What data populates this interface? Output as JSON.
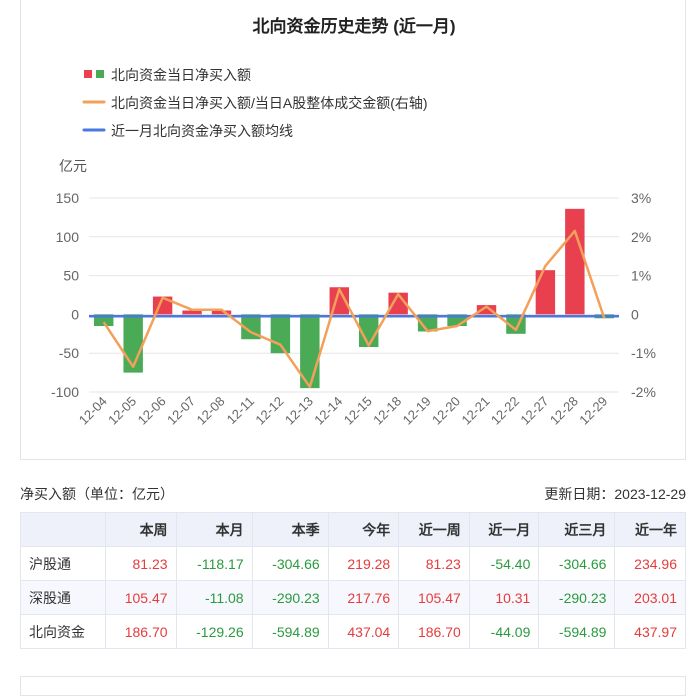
{
  "chart_data": {
    "type": "bar",
    "title": "北向资金历史走势 (近一月)",
    "legend": [
      {
        "label": "北向资金当日净买入额",
        "colors": [
          "#e8404f",
          "#4aaa56"
        ],
        "marker": "square-pair"
      },
      {
        "label": "北向资金当日净买入额/当日A股整体成交金额(右轴)",
        "colors": [
          "#f2a05a"
        ],
        "marker": "line"
      },
      {
        "label": "近一月北向资金净买入额均线",
        "colors": [
          "#4a77e0"
        ],
        "marker": "line"
      }
    ],
    "legend_position": "top-left",
    "ylabel": "亿元",
    "ylim": [
      -100,
      150
    ],
    "yticks": [
      150,
      100,
      50,
      0,
      -50,
      -100
    ],
    "y2lim": [
      -2,
      3
    ],
    "y2ticks": [
      "3%",
      "2%",
      "1%",
      "0",
      "-1%",
      "-2%"
    ],
    "y2values": [
      3,
      2,
      1,
      0,
      -1,
      -2
    ],
    "categories": [
      "12-04",
      "12-05",
      "12-06",
      "12-07",
      "12-08",
      "12-11",
      "12-12",
      "12-13",
      "12-14",
      "12-15",
      "12-18",
      "12-19",
      "12-20",
      "12-21",
      "12-22",
      "12-27",
      "12-28",
      "12-29"
    ],
    "series": [
      {
        "name": "北向资金当日净买入额",
        "type": "bar",
        "values": [
          -15,
          -75,
          23,
          5,
          5,
          -32,
          -50,
          -95,
          35,
          -42,
          28,
          -22,
          -15,
          12,
          -25,
          57,
          136,
          -5
        ]
      },
      {
        "name": "北向资金当日净买入额/当日A股整体成交金额(右轴)",
        "type": "line",
        "axis": "right",
        "values": [
          -0.2,
          -1.35,
          0.43,
          0.12,
          0.12,
          -0.46,
          -0.78,
          -1.87,
          0.65,
          -0.8,
          0.52,
          -0.43,
          -0.3,
          0.2,
          -0.4,
          1.25,
          2.15,
          -0.1
        ]
      },
      {
        "name": "近一月北向资金净买入额均线",
        "type": "line",
        "values": [
          -2.4,
          -2.4,
          -2.4,
          -2.4,
          -2.4,
          -2.4,
          -2.4,
          -2.4,
          -2.4,
          -2.4,
          -2.4,
          -2.4,
          -2.4,
          -2.4,
          -2.4,
          -2.4,
          -2.4,
          -2.4
        ]
      }
    ],
    "colors": {
      "positive": "#e8404f",
      "negative": "#4aaa56",
      "ratio": "#f2a05a",
      "average": "#4a77e0"
    }
  },
  "table_caption": "净买入额（单位：亿元）",
  "update_date": "更新日期：2023-12-29",
  "table": {
    "headers": [
      "",
      "本周",
      "本月",
      "本季",
      "今年",
      "近一周",
      "近一月",
      "近三月",
      "近一年"
    ],
    "rows": [
      {
        "name": "沪股通",
        "values": [
          "81.23",
          "-118.17",
          "-304.66",
          "219.28",
          "81.23",
          "-54.40",
          "-304.66",
          "234.96"
        ]
      },
      {
        "name": "深股通",
        "values": [
          "105.47",
          "-11.08",
          "-290.23",
          "217.76",
          "105.47",
          "10.31",
          "-290.23",
          "203.01"
        ]
      },
      {
        "name": "北向资金",
        "values": [
          "186.70",
          "-129.26",
          "-594.89",
          "437.04",
          "186.70",
          "-44.09",
          "-594.89",
          "437.97"
        ]
      }
    ]
  }
}
